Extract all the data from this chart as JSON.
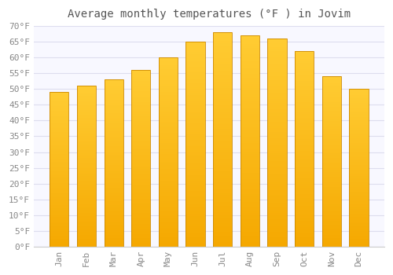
{
  "title": "Average monthly temperatures (°F ) in Jovim",
  "months": [
    "Jan",
    "Feb",
    "Mar",
    "Apr",
    "May",
    "Jun",
    "Jul",
    "Aug",
    "Sep",
    "Oct",
    "Nov",
    "Dec"
  ],
  "values": [
    49,
    51,
    53,
    56,
    60,
    65,
    68,
    67,
    66,
    62,
    54,
    50
  ],
  "bar_color_top": "#FFCC33",
  "bar_color_bottom": "#F5A800",
  "bar_edge_color": "#CC8800",
  "background_color": "#FFFFFF",
  "plot_bg_color": "#F8F8FF",
  "grid_color": "#DDDDEE",
  "text_color": "#888888",
  "title_color": "#555555",
  "ylim": [
    0,
    70
  ],
  "yticks": [
    0,
    5,
    10,
    15,
    20,
    25,
    30,
    35,
    40,
    45,
    50,
    55,
    60,
    65,
    70
  ],
  "title_fontsize": 10,
  "tick_fontsize": 8,
  "bar_width": 0.7
}
